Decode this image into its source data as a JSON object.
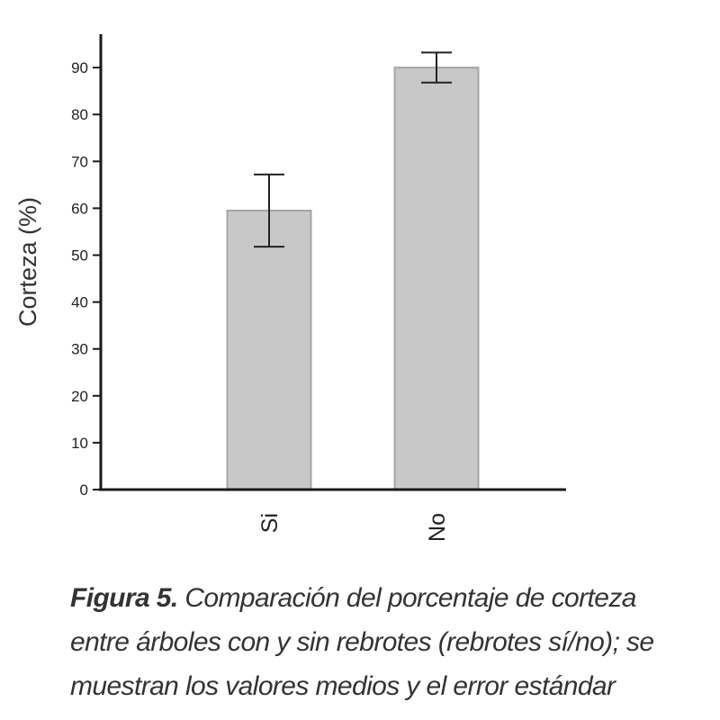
{
  "chart_data": {
    "type": "bar",
    "categories": [
      "Si",
      "No"
    ],
    "values": [
      59.5,
      90
    ],
    "error": [
      7.7,
      3.2
    ],
    "ylabel": "Corteza (%)",
    "xlabel": "",
    "ylim": [
      0,
      95
    ],
    "yticks": [
      0,
      10,
      20,
      30,
      40,
      50,
      60,
      70,
      80,
      90
    ],
    "grid": false,
    "bar_color": "#c8c8c8",
    "bar_edge_color": "#a6a6a6"
  },
  "caption": {
    "lead": "Figura 5.",
    "text": " Comparación del porcentaje de corteza entre árboles con y sin rebrotes (rebrotes sí/no); se muestran los valores medios y el error estándar"
  }
}
